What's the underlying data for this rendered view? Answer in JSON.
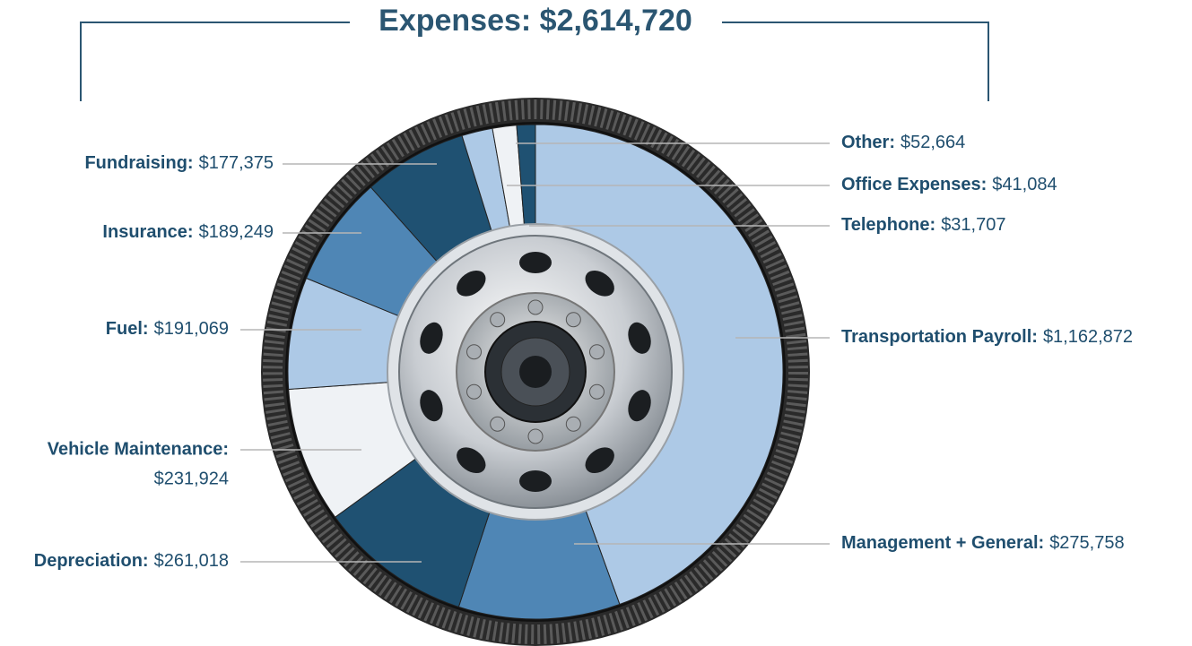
{
  "chart_data": {
    "type": "pie",
    "title": "Expenses: $2,614,720",
    "categories": [
      "Transportation Payroll:",
      "Management + General:",
      "Depreciation:",
      "Vehicle Maintenance:",
      "Fuel:",
      "Insurance:",
      "Fundraising:",
      "Other:",
      "Office Expenses:",
      "Telephone:"
    ],
    "values": [
      1162872,
      275758,
      261018,
      231924,
      191069,
      189249,
      177375,
      52664,
      41084,
      31707
    ],
    "value_labels": [
      "$1,162,872",
      "$275,758",
      "$261,018",
      "$231,924",
      "$191,069",
      "$189,249",
      "$177,375",
      "$52,664",
      "$41,084",
      "$31,707"
    ],
    "colors": [
      "#adc9e6",
      "#4f86b5",
      "#1f5172",
      "#eff2f5",
      "#adc9e6",
      "#4f86b5",
      "#1f5172",
      "#adc9e6",
      "#eff2f5",
      "#1f5172"
    ]
  }
}
